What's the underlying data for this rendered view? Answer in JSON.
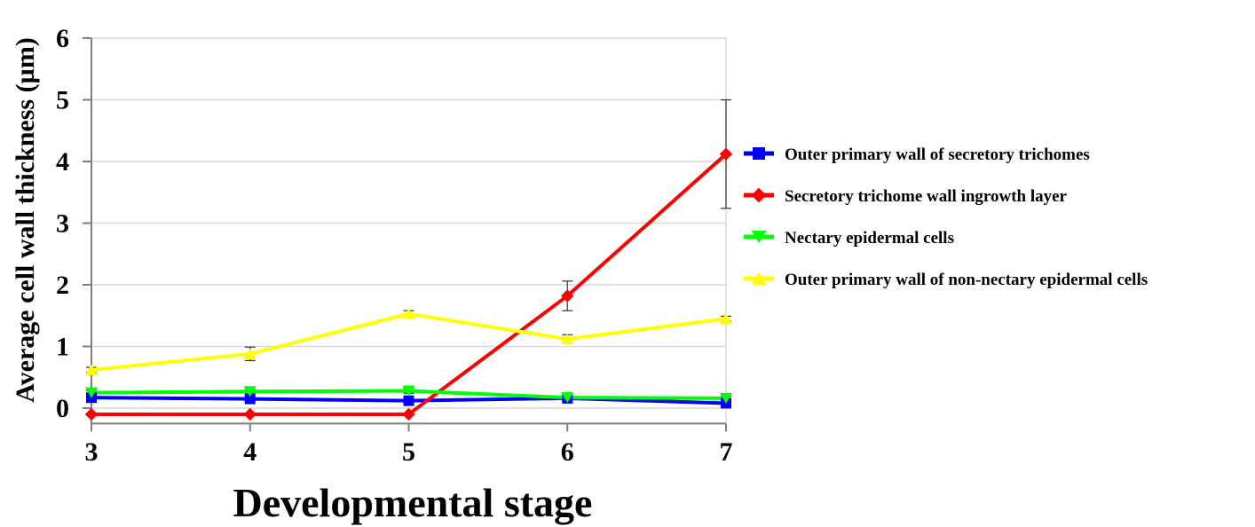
{
  "chart_data": {
    "type": "line",
    "title": "",
    "xlabel": "Developmental stage",
    "ylabel": "Average cell wall thickness (µm)",
    "x": [
      3,
      4,
      5,
      6,
      7
    ],
    "x_tick_labels": [
      "3",
      "4",
      "5",
      "6",
      "7"
    ],
    "y_tick_labels": [
      "0",
      "1",
      "2",
      "3",
      "4",
      "5",
      "6"
    ],
    "ylim": [
      -0.25,
      6
    ],
    "grid": true,
    "legend_position": "right",
    "series": [
      {
        "name": "Outer primary wall of secretory trichomes",
        "color": "#0000ff",
        "marker": "square",
        "values": [
          0.17,
          0.15,
          0.12,
          0.16,
          0.08
        ],
        "errors": [
          0.04,
          0.03,
          0.03,
          0.03,
          0.02
        ]
      },
      {
        "name": "Secretory trichome wall ingrowth layer",
        "color": "#ff0000",
        "marker": "diamond",
        "values": [
          -0.1,
          -0.1,
          -0.1,
          1.82,
          4.12
        ],
        "errors": [
          0,
          0,
          0,
          0.24,
          0.88
        ]
      },
      {
        "name": "Nectary epidermal cells",
        "color": "#00ff00",
        "marker": "triangle-down",
        "values": [
          0.25,
          0.27,
          0.28,
          0.17,
          0.16
        ],
        "errors": [
          0.03,
          0.03,
          0.04,
          0.03,
          0.03
        ]
      },
      {
        "name": "Outer primary wall of non-nectary epidermal cells",
        "color": "#ffff00",
        "marker": "triangle-up",
        "values": [
          0.62,
          0.88,
          1.53,
          1.12,
          1.45
        ],
        "errors": [
          0.04,
          0.11,
          0.05,
          0.07,
          0.04
        ]
      }
    ]
  }
}
